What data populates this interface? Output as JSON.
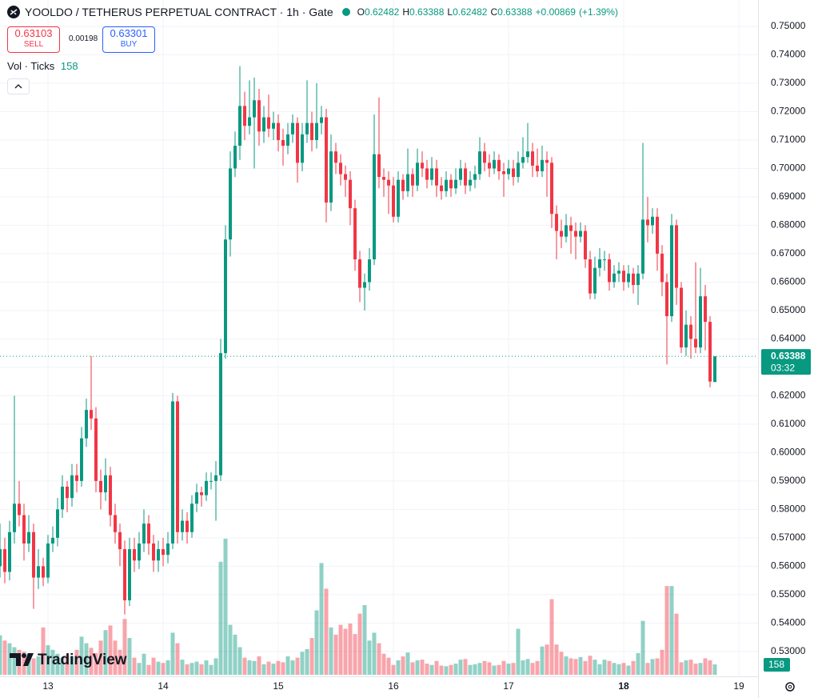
{
  "chart_data": {
    "type": "candlestick",
    "title": "YOOLDO / TETHERUS PERPETUAL CONTRACT · 1h · Gate",
    "ohlc_labels": [
      "O",
      "H",
      "L",
      "C"
    ],
    "change": "+0.00869",
    "change_pct": "(+1.39%)",
    "sell": {
      "price": 0.63103,
      "label": "SELL"
    },
    "spread": 0.00198,
    "buy": {
      "price": 0.63301,
      "label": "BUY"
    },
    "volume_label": "Vol · Ticks",
    "countdown": "03:32",
    "branding": "TradingView",
    "up_color": "#089981",
    "down_color": "#f23645",
    "grid": true,
    "ylim": [
      0.52122,
      0.75929
    ],
    "yticks": [
      {
        "value": 0.53,
        "label": "0.53000"
      },
      {
        "value": 0.54,
        "label": "0.54000"
      },
      {
        "value": 0.55,
        "label": "0.55000"
      },
      {
        "value": 0.56,
        "label": "0.56000"
      },
      {
        "value": 0.57,
        "label": "0.57000"
      },
      {
        "value": 0.58,
        "label": "0.58000"
      },
      {
        "value": 0.59,
        "label": "0.59000"
      },
      {
        "value": 0.6,
        "label": "0.60000"
      },
      {
        "value": 0.61,
        "label": "0.61000"
      },
      {
        "value": 0.62,
        "label": "0.62000"
      },
      {
        "value": 0.63,
        "label": "0.63000"
      },
      {
        "value": 0.64,
        "label": "0.64000"
      },
      {
        "value": 0.65,
        "label": "0.65000"
      },
      {
        "value": 0.66,
        "label": "0.66000"
      },
      {
        "value": 0.67,
        "label": "0.67000"
      },
      {
        "value": 0.68,
        "label": "0.68000"
      },
      {
        "value": 0.69,
        "label": "0.69000"
      },
      {
        "value": 0.7,
        "label": "0.70000"
      },
      {
        "value": 0.71,
        "label": "0.71000"
      },
      {
        "value": 0.72,
        "label": "0.72000"
      },
      {
        "value": 0.73,
        "label": "0.73000"
      },
      {
        "value": 0.74,
        "label": "0.74000"
      },
      {
        "value": 0.75,
        "label": "0.75000"
      }
    ],
    "xlim": [
      0,
      158
    ],
    "xticks": [
      {
        "value": 10,
        "label": "13"
      },
      {
        "value": 34,
        "label": "14"
      },
      {
        "value": 58,
        "label": "15"
      },
      {
        "value": 82,
        "label": "16"
      },
      {
        "value": 106,
        "label": "17"
      },
      {
        "value": 130,
        "label": "18"
      },
      {
        "value": 154,
        "label": "19"
      }
    ],
    "ohlc": [
      [
        0.56,
        0.575,
        0.556,
        0.566
      ],
      [
        0.566,
        0.57,
        0.554,
        0.558
      ],
      [
        0.558,
        0.576,
        0.555,
        0.572
      ],
      [
        0.572,
        0.62,
        0.568,
        0.582
      ],
      [
        0.582,
        0.59,
        0.574,
        0.578
      ],
      [
        0.578,
        0.582,
        0.562,
        0.568
      ],
      [
        0.568,
        0.578,
        0.565,
        0.572
      ],
      [
        0.572,
        0.575,
        0.545,
        0.556
      ],
      [
        0.556,
        0.566,
        0.552,
        0.56
      ],
      [
        0.56,
        0.563,
        0.553,
        0.556
      ],
      [
        0.556,
        0.571,
        0.554,
        0.568
      ],
      [
        0.568,
        0.574,
        0.565,
        0.57
      ],
      [
        0.57,
        0.584,
        0.567,
        0.58
      ],
      [
        0.58,
        0.592,
        0.577,
        0.588
      ],
      [
        0.588,
        0.59,
        0.579,
        0.584
      ],
      [
        0.584,
        0.596,
        0.581,
        0.592
      ],
      [
        0.592,
        0.596,
        0.586,
        0.59
      ],
      [
        0.59,
        0.609,
        0.588,
        0.605
      ],
      [
        0.605,
        0.619,
        0.602,
        0.615
      ],
      [
        0.615,
        0.634,
        0.608,
        0.612
      ],
      [
        0.612,
        0.616,
        0.586,
        0.59
      ],
      [
        0.59,
        0.594,
        0.58,
        0.586
      ],
      [
        0.586,
        0.598,
        0.583,
        0.592
      ],
      [
        0.592,
        0.595,
        0.574,
        0.578
      ],
      [
        0.578,
        0.582,
        0.568,
        0.572
      ],
      [
        0.572,
        0.575,
        0.56,
        0.566
      ],
      [
        0.566,
        0.569,
        0.543,
        0.548
      ],
      [
        0.548,
        0.57,
        0.546,
        0.566
      ],
      [
        0.566,
        0.57,
        0.558,
        0.562
      ],
      [
        0.562,
        0.572,
        0.559,
        0.568
      ],
      [
        0.568,
        0.58,
        0.565,
        0.575
      ],
      [
        0.575,
        0.578,
        0.564,
        0.568
      ],
      [
        0.568,
        0.571,
        0.558,
        0.562
      ],
      [
        0.562,
        0.569,
        0.558,
        0.566
      ],
      [
        0.566,
        0.57,
        0.56,
        0.564
      ],
      [
        0.564,
        0.572,
        0.561,
        0.568
      ],
      [
        0.568,
        0.621,
        0.566,
        0.618
      ],
      [
        0.618,
        0.62,
        0.568,
        0.572
      ],
      [
        0.572,
        0.58,
        0.569,
        0.576
      ],
      [
        0.576,
        0.579,
        0.568,
        0.572
      ],
      [
        0.572,
        0.585,
        0.57,
        0.582
      ],
      [
        0.582,
        0.589,
        0.579,
        0.586
      ],
      [
        0.586,
        0.588,
        0.581,
        0.585
      ],
      [
        0.585,
        0.593,
        0.583,
        0.59
      ],
      [
        0.59,
        0.593,
        0.587,
        0.59
      ],
      [
        0.59,
        0.597,
        0.576,
        0.592
      ],
      [
        0.592,
        0.64,
        0.59,
        0.635
      ],
      [
        0.635,
        0.68,
        0.633,
        0.675
      ],
      [
        0.675,
        0.706,
        0.669,
        0.7
      ],
      [
        0.7,
        0.713,
        0.697,
        0.708
      ],
      [
        0.708,
        0.736,
        0.703,
        0.722
      ],
      [
        0.722,
        0.727,
        0.71,
        0.715
      ],
      [
        0.715,
        0.731,
        0.712,
        0.718
      ],
      [
        0.718,
        0.732,
        0.7,
        0.724
      ],
      [
        0.724,
        0.728,
        0.708,
        0.713
      ],
      [
        0.713,
        0.722,
        0.709,
        0.718
      ],
      [
        0.718,
        0.726,
        0.711,
        0.714
      ],
      [
        0.714,
        0.72,
        0.71,
        0.716
      ],
      [
        0.716,
        0.719,
        0.706,
        0.71
      ],
      [
        0.71,
        0.714,
        0.701,
        0.708
      ],
      [
        0.708,
        0.716,
        0.705,
        0.712
      ],
      [
        0.712,
        0.719,
        0.709,
        0.716
      ],
      [
        0.716,
        0.718,
        0.695,
        0.702
      ],
      [
        0.702,
        0.716,
        0.699,
        0.712
      ],
      [
        0.712,
        0.731,
        0.709,
        0.716
      ],
      [
        0.716,
        0.72,
        0.706,
        0.71
      ],
      [
        0.71,
        0.73,
        0.707,
        0.716
      ],
      [
        0.716,
        0.722,
        0.712,
        0.718
      ],
      [
        0.718,
        0.721,
        0.681,
        0.688
      ],
      [
        0.688,
        0.712,
        0.685,
        0.706
      ],
      [
        0.706,
        0.709,
        0.698,
        0.702
      ],
      [
        0.702,
        0.705,
        0.694,
        0.698
      ],
      [
        0.698,
        0.701,
        0.69,
        0.696
      ],
      [
        0.696,
        0.699,
        0.68,
        0.686
      ],
      [
        0.686,
        0.689,
        0.664,
        0.668
      ],
      [
        0.668,
        0.671,
        0.653,
        0.658
      ],
      [
        0.658,
        0.663,
        0.65,
        0.66
      ],
      [
        0.66,
        0.672,
        0.657,
        0.668
      ],
      [
        0.668,
        0.719,
        0.666,
        0.705
      ],
      [
        0.705,
        0.725,
        0.693,
        0.697
      ],
      [
        0.697,
        0.7,
        0.69,
        0.696
      ],
      [
        0.696,
        0.699,
        0.684,
        0.694
      ],
      [
        0.694,
        0.697,
        0.681,
        0.683
      ],
      [
        0.683,
        0.699,
        0.681,
        0.696
      ],
      [
        0.696,
        0.698,
        0.689,
        0.692
      ],
      [
        0.692,
        0.707,
        0.69,
        0.698
      ],
      [
        0.698,
        0.7,
        0.69,
        0.694
      ],
      [
        0.694,
        0.707,
        0.692,
        0.702
      ],
      [
        0.702,
        0.706,
        0.697,
        0.7
      ],
      [
        0.7,
        0.703,
        0.693,
        0.696
      ],
      [
        0.696,
        0.704,
        0.694,
        0.7
      ],
      [
        0.7,
        0.703,
        0.69,
        0.694
      ],
      [
        0.694,
        0.697,
        0.689,
        0.692
      ],
      [
        0.692,
        0.699,
        0.69,
        0.696
      ],
      [
        0.696,
        0.698,
        0.69,
        0.693
      ],
      [
        0.693,
        0.7,
        0.691,
        0.696
      ],
      [
        0.696,
        0.703,
        0.694,
        0.7
      ],
      [
        0.7,
        0.702,
        0.691,
        0.694
      ],
      [
        0.694,
        0.699,
        0.692,
        0.696
      ],
      [
        0.696,
        0.701,
        0.693,
        0.698
      ],
      [
        0.698,
        0.711,
        0.696,
        0.706
      ],
      [
        0.706,
        0.709,
        0.699,
        0.702
      ],
      [
        0.702,
        0.705,
        0.697,
        0.7
      ],
      [
        0.7,
        0.706,
        0.698,
        0.703
      ],
      [
        0.703,
        0.705,
        0.696,
        0.699
      ],
      [
        0.699,
        0.702,
        0.69,
        0.698
      ],
      [
        0.698,
        0.703,
        0.696,
        0.7
      ],
      [
        0.7,
        0.703,
        0.694,
        0.697
      ],
      [
        0.697,
        0.706,
        0.695,
        0.702
      ],
      [
        0.702,
        0.711,
        0.7,
        0.704
      ],
      [
        0.704,
        0.716,
        0.702,
        0.706
      ],
      [
        0.706,
        0.709,
        0.697,
        0.701
      ],
      [
        0.701,
        0.707,
        0.697,
        0.699
      ],
      [
        0.699,
        0.708,
        0.697,
        0.703
      ],
      [
        0.703,
        0.706,
        0.69,
        0.702
      ],
      [
        0.702,
        0.704,
        0.679,
        0.684
      ],
      [
        0.684,
        0.687,
        0.668,
        0.678
      ],
      [
        0.678,
        0.682,
        0.672,
        0.676
      ],
      [
        0.676,
        0.684,
        0.674,
        0.68
      ],
      [
        0.68,
        0.683,
        0.67,
        0.678
      ],
      [
        0.678,
        0.681,
        0.668,
        0.676
      ],
      [
        0.676,
        0.681,
        0.674,
        0.678
      ],
      [
        0.678,
        0.68,
        0.665,
        0.668
      ],
      [
        0.668,
        0.671,
        0.654,
        0.656
      ],
      [
        0.656,
        0.669,
        0.654,
        0.665
      ],
      [
        0.665,
        0.672,
        0.662,
        0.668
      ],
      [
        0.668,
        0.671,
        0.664,
        0.668
      ],
      [
        0.668,
        0.67,
        0.657,
        0.66
      ],
      [
        0.66,
        0.666,
        0.658,
        0.663
      ],
      [
        0.663,
        0.667,
        0.66,
        0.664
      ],
      [
        0.664,
        0.666,
        0.657,
        0.66
      ],
      [
        0.66,
        0.666,
        0.658,
        0.663
      ],
      [
        0.663,
        0.665,
        0.656,
        0.659
      ],
      [
        0.659,
        0.666,
        0.652,
        0.663
      ],
      [
        0.663,
        0.709,
        0.661,
        0.682
      ],
      [
        0.682,
        0.69,
        0.674,
        0.68
      ],
      [
        0.68,
        0.686,
        0.677,
        0.683
      ],
      [
        0.683,
        0.686,
        0.664,
        0.67
      ],
      [
        0.67,
        0.673,
        0.655,
        0.66
      ],
      [
        0.66,
        0.663,
        0.631,
        0.648
      ],
      [
        0.648,
        0.684,
        0.646,
        0.68
      ],
      [
        0.68,
        0.682,
        0.652,
        0.658
      ],
      [
        0.658,
        0.66,
        0.635,
        0.637
      ],
      [
        0.637,
        0.65,
        0.634,
        0.645
      ],
      [
        0.645,
        0.648,
        0.633,
        0.64
      ],
      [
        0.64,
        0.667,
        0.635,
        0.637
      ],
      [
        0.637,
        0.665,
        0.635,
        0.655
      ],
      [
        0.655,
        0.659,
        0.636,
        0.646
      ],
      [
        0.646,
        0.648,
        0.623,
        0.625
      ],
      [
        0.62482,
        0.63388,
        0.62482,
        0.63388
      ]
    ],
    "volume": [
      600,
      520,
      480,
      420,
      380,
      350,
      330,
      250,
      280,
      720,
      450,
      380,
      320,
      260,
      300,
      280,
      380,
      580,
      480,
      410,
      330,
      520,
      680,
      750,
      520,
      380,
      850,
      560,
      260,
      180,
      320,
      150,
      260,
      200,
      180,
      220,
      640,
      480,
      230,
      160,
      180,
      200,
      160,
      220,
      150,
      250,
      1720,
      2070,
      760,
      610,
      420,
      260,
      220,
      210,
      280,
      160,
      200,
      170,
      210,
      190,
      280,
      220,
      260,
      350,
      390,
      560,
      980,
      1700,
      1310,
      720,
      610,
      760,
      700,
      780,
      620,
      930,
      1060,
      520,
      640,
      480,
      320,
      260,
      150,
      220,
      280,
      340,
      190,
      220,
      230,
      170,
      150,
      210,
      140,
      130,
      150,
      170,
      230,
      240,
      150,
      160,
      180,
      210,
      190,
      140,
      150,
      210,
      170,
      180,
      700,
      220,
      240,
      180,
      210,
      430,
      460,
      1150,
      460,
      350,
      280,
      250,
      240,
      270,
      210,
      290,
      230,
      160,
      230,
      210,
      180,
      160,
      180,
      140,
      210,
      330,
      820,
      180,
      240,
      250,
      380,
      1350,
      1350,
      930,
      190,
      220,
      230,
      170,
      180,
      250,
      220,
      158
    ]
  }
}
